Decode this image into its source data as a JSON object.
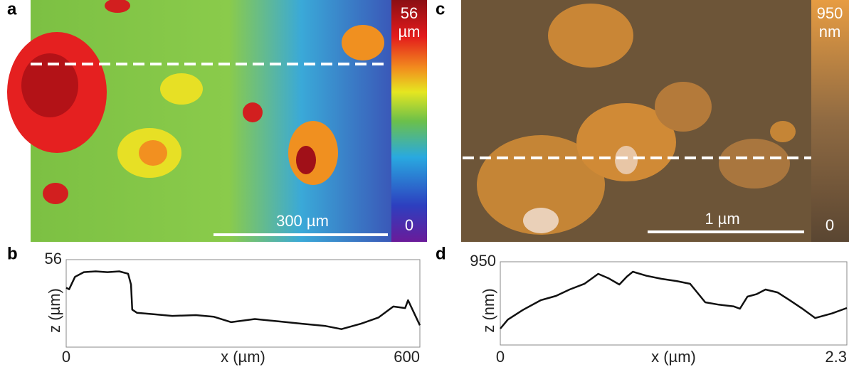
{
  "images": [
    {
      "panel": "a",
      "colorbar": {
        "max": 56,
        "unit": "µm",
        "min": 0
      },
      "scale_bar": "300 µm"
    },
    {
      "panel": "c",
      "colorbar": {
        "max": 950,
        "unit": "nm",
        "min": 0
      },
      "scale_bar": "1 µm"
    }
  ],
  "chart_data": [
    {
      "type": "line",
      "panel": "b",
      "x_label": "x (µm)",
      "y_label": "z (µm)",
      "x": [
        0,
        5,
        15,
        30,
        50,
        70,
        90,
        105,
        110,
        112,
        120,
        150,
        180,
        220,
        250,
        280,
        320,
        360,
        400,
        440,
        467,
        500,
        530,
        555,
        575,
        580,
        590,
        600
      ],
      "series": [
        {
          "name": null,
          "color": "#111111",
          "values": [
            38,
            37,
            45,
            48,
            48.5,
            48,
            48.5,
            47,
            40,
            24,
            22,
            21,
            20,
            20.5,
            19.5,
            16,
            18,
            16.5,
            15,
            13.5,
            11.5,
            15,
            19,
            26,
            25,
            30,
            22,
            14
          ]
        }
      ],
      "xlim": [
        0,
        600
      ],
      "ylim": [
        0,
        56
      ],
      "xticks": [
        0,
        600
      ],
      "yticks": [
        56
      ]
    },
    {
      "type": "line",
      "panel": "d",
      "x_label": "x (µm)",
      "y_label": "z (nm)",
      "x": [
        0,
        0.05,
        0.15,
        0.27,
        0.37,
        0.46,
        0.56,
        0.65,
        0.72,
        0.79,
        0.84,
        0.88,
        0.97,
        1.07,
        1.17,
        1.26,
        1.36,
        1.45,
        1.55,
        1.59,
        1.64,
        1.7,
        1.76,
        1.84,
        1.92,
        2.0,
        2.09,
        2.2,
        2.3
      ],
      "series": [
        {
          "name": null,
          "color": "#111111",
          "values": [
            187,
            290,
            400,
            512,
            560,
            633,
            700,
            812,
            760,
            690,
            780,
            836,
            790,
            755,
            730,
            698,
            487,
            460,
            440,
            414,
            552,
            580,
            633,
            600,
            512,
            420,
            308,
            360,
            422
          ]
        }
      ],
      "xlim": [
        0,
        2.3
      ],
      "ylim": [
        0,
        950
      ],
      "xticks": [
        0,
        2.3
      ],
      "yticks": [
        950
      ]
    }
  ]
}
